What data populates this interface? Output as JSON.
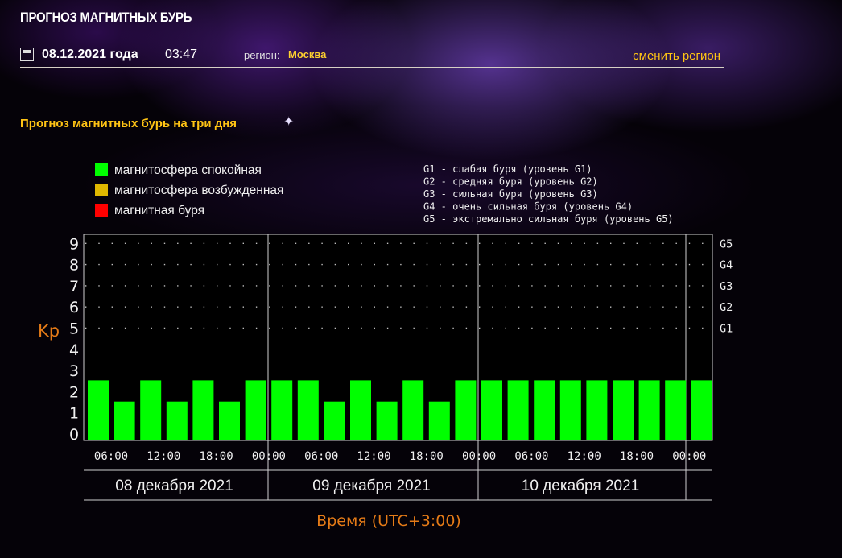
{
  "header": {
    "site_title": "ПРОГНОЗ МАГНИТНЫХ БУРЬ",
    "date": "08.12.2021 года",
    "time": "03:47",
    "region_label": "регион:",
    "region": "Москва",
    "change_region": "сменить регион"
  },
  "section_title": "Прогноз магнитных бурь на три дня",
  "colors": {
    "accent": "#ffc414",
    "axis_label": "#e57b17",
    "quiet": "#00ff00",
    "excited": "#e0b800",
    "storm": "#ff0000"
  },
  "chart_data": {
    "type": "bar",
    "ylabel": "Kp",
    "xlabel": "Время (UTC+3:00)",
    "ylim": [
      0,
      9
    ],
    "yticks": [
      0,
      1,
      2,
      3,
      4,
      5,
      6,
      7,
      8,
      9
    ],
    "right_ticks": [
      {
        "label": "G1",
        "kp": 5
      },
      {
        "label": "G2",
        "kp": 6
      },
      {
        "label": "G3",
        "kp": 7
      },
      {
        "label": "G4",
        "kp": 8
      },
      {
        "label": "G5",
        "kp": 9
      }
    ],
    "legend": [
      {
        "label": "магнитосфера спокойная",
        "color": "#00ff00"
      },
      {
        "label": "магнитосфера возбужденная",
        "color": "#e0b800"
      },
      {
        "label": "магнитная буря",
        "color": "#ff0000"
      }
    ],
    "storm_levels": [
      "G1 - слабая буря (уровень G1)",
      "G2 - средняя буря (уровень G2)",
      "G3 - сильная буря (уровень G3)",
      "G4 - очень сильная буря (уровень G4)",
      "G5 - экстремально сильная буря (уровень G5)"
    ],
    "xtick_labels": [
      "06:00",
      "12:00",
      "18:00",
      "00:00",
      "06:00",
      "12:00",
      "18:00",
      "00:00",
      "06:00",
      "12:00",
      "18:00",
      "00:00"
    ],
    "days": [
      "08 декабря 2021",
      "09 декабря 2021",
      "10 декабря 2021"
    ],
    "values": [
      2,
      1,
      2,
      1,
      2,
      1,
      2,
      2,
      2,
      1,
      2,
      1,
      2,
      1,
      2,
      2,
      2,
      2,
      2,
      2,
      2,
      2,
      2,
      2
    ]
  }
}
